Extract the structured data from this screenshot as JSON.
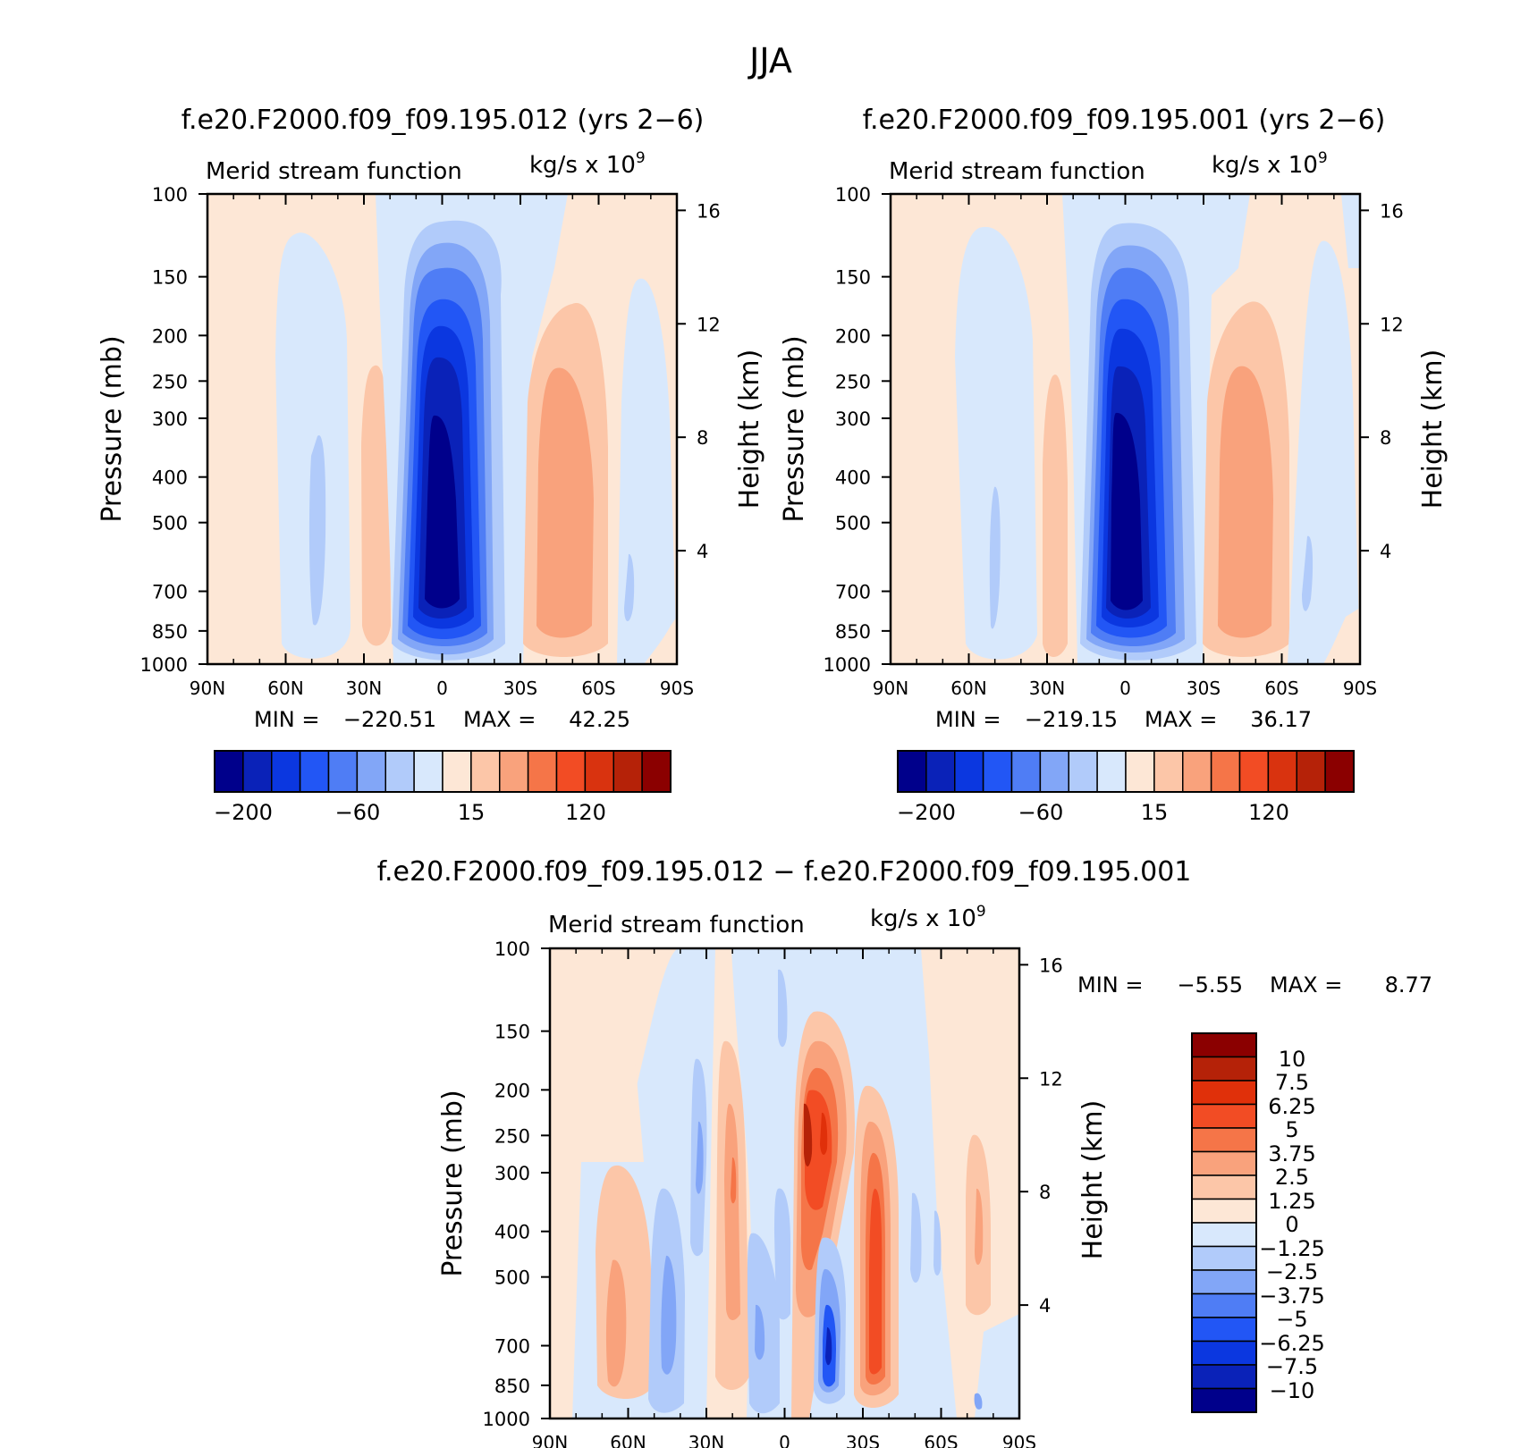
{
  "figure": {
    "title": "JJA",
    "panels": [
      {
        "id": "p1",
        "case_title": "f.e20.F2000.f09_f09.195.012 (yrs 2−6)",
        "left_title": "Merid stream function",
        "units_main": "kg/s x 10",
        "units_exp": "9",
        "ylabel": "Pressure (mb)",
        "y2label": "Height (km)",
        "xticks": [
          "90N",
          "60N",
          "30N",
          "0",
          "30S",
          "60S",
          "90S"
        ],
        "yticks": [
          "100",
          "150",
          "200",
          "250",
          "300",
          "400",
          "500",
          "700",
          "850",
          "1000"
        ],
        "y2ticks": [
          "16",
          "12",
          "8",
          "4"
        ],
        "min_label": "MIN =",
        "min_value": "−220.51",
        "max_label": "MAX =",
        "max_value": "42.25",
        "colorbar_labels": [
          "−200",
          "−60",
          "15",
          "120"
        ]
      },
      {
        "id": "p2",
        "case_title": "f.e20.F2000.f09_f09.195.001 (yrs 2−6)",
        "left_title": "Merid stream function",
        "units_main": "kg/s x 10",
        "units_exp": "9",
        "ylabel": "Pressure (mb)",
        "y2label": "Height (km)",
        "xticks": [
          "90N",
          "60N",
          "30N",
          "0",
          "30S",
          "60S",
          "90S"
        ],
        "yticks": [
          "100",
          "150",
          "200",
          "250",
          "300",
          "400",
          "500",
          "700",
          "850",
          "1000"
        ],
        "y2ticks": [
          "16",
          "12",
          "8",
          "4"
        ],
        "min_label": "MIN =",
        "min_value": "−219.15",
        "max_label": "MAX =",
        "max_value": "36.17",
        "colorbar_labels": [
          "−200",
          "−60",
          "15",
          "120"
        ]
      },
      {
        "id": "p3",
        "case_title": "f.e20.F2000.f09_f09.195.012 − f.e20.F2000.f09_f09.195.001",
        "left_title": "Merid stream function",
        "units_main": "kg/s x 10",
        "units_exp": "9",
        "ylabel": "Pressure (mb)",
        "y2label": "Height (km)",
        "xticks": [
          "90N",
          "60N",
          "30N",
          "0",
          "30S",
          "60S",
          "90S"
        ],
        "yticks": [
          "100",
          "150",
          "200",
          "250",
          "300",
          "400",
          "500",
          "700",
          "850",
          "1000"
        ],
        "y2ticks": [
          "16",
          "12",
          "8",
          "4"
        ],
        "min_label": "MIN =",
        "min_value": "−5.55",
        "max_label": "MAX =",
        "max_value": "8.77",
        "colorbar_labels": [
          "10",
          "7.5",
          "6.25",
          "5",
          "3.75",
          "2.5",
          "1.25",
          "0",
          "−1.25",
          "−2.5",
          "−3.75",
          "−5",
          "−6.25",
          "−7.5",
          "−10"
        ]
      }
    ]
  },
  "colors": {
    "palette_blue_to_red": [
      "#00008b",
      "#0a22b8",
      "#0b37e0",
      "#2256f5",
      "#4f7df5",
      "#82a6f7",
      "#b1cbfa",
      "#d8e8fc",
      "#fde7d6",
      "#fcc6a8",
      "#f9a27c",
      "#f57548",
      "#f24c24",
      "#d9330f",
      "#b52208",
      "#8b0000"
    ],
    "palette_diff_top_to_bottom": [
      "#8b0000",
      "#b52208",
      "#e0300a",
      "#f24c24",
      "#f57548",
      "#f9a27c",
      "#fcc6a8",
      "#fde7d6",
      "#d8e8fc",
      "#b1cbfa",
      "#82a6f7",
      "#4f7df5",
      "#2256f5",
      "#0b37e0",
      "#0a22b8",
      "#00008b"
    ]
  },
  "chart_data": [
    {
      "type": "heatmap",
      "title": "f.e20.F2000.f09_f09.195.012 (yrs 2−6)",
      "variable": "Merid stream function",
      "units": "kg/s x 10^9",
      "x_axis": {
        "label": "",
        "ticks": [
          "90N",
          "60N",
          "30N",
          "0",
          "30S",
          "60S",
          "90S"
        ],
        "range_deg": [
          90,
          -90
        ]
      },
      "y_axis": {
        "label": "Pressure (mb)",
        "scale": "log",
        "range": [
          1000,
          100
        ]
      },
      "y2_axis": {
        "label": "Height (km)",
        "ticks": [
          4,
          8,
          12,
          16
        ]
      },
      "min": -220.51,
      "max": 42.25,
      "levels": [
        -200,
        -180,
        -160,
        -140,
        -120,
        -100,
        -60,
        -20,
        0,
        15,
        30,
        60,
        90,
        120,
        150,
        180
      ],
      "colorbar_labels": [
        "-200",
        "-60",
        "15",
        "120"
      ],
      "features": [
        {
          "center_lat": 0,
          "center_p": 550,
          "sign": "negative",
          "peak": -220.51
        },
        {
          "center_lat": -40,
          "center_p": 500,
          "sign": "positive",
          "peak": 42.25
        },
        {
          "center_lat": 27,
          "center_p": 500,
          "sign": "positive"
        },
        {
          "center_lat": 45,
          "center_p": 450,
          "sign": "negative"
        }
      ]
    },
    {
      "type": "heatmap",
      "title": "f.e20.F2000.f09_f09.195.001 (yrs 2−6)",
      "variable": "Merid stream function",
      "units": "kg/s x 10^9",
      "x_axis": {
        "label": "",
        "ticks": [
          "90N",
          "60N",
          "30N",
          "0",
          "30S",
          "60S",
          "90S"
        ],
        "range_deg": [
          90,
          -90
        ]
      },
      "y_axis": {
        "label": "Pressure (mb)",
        "scale": "log",
        "range": [
          1000,
          100
        ]
      },
      "y2_axis": {
        "label": "Height (km)",
        "ticks": [
          4,
          8,
          12,
          16
        ]
      },
      "min": -219.15,
      "max": 36.17,
      "levels": [
        -200,
        -180,
        -160,
        -140,
        -120,
        -100,
        -60,
        -20,
        0,
        15,
        30,
        60,
        90,
        120,
        150,
        180
      ],
      "colorbar_labels": [
        "-200",
        "-60",
        "15",
        "120"
      ],
      "features": [
        {
          "center_lat": 0,
          "center_p": 550,
          "sign": "negative",
          "peak": -219.15
        },
        {
          "center_lat": -40,
          "center_p": 500,
          "sign": "positive",
          "peak": 36.17
        },
        {
          "center_lat": 27,
          "center_p": 500,
          "sign": "positive"
        },
        {
          "center_lat": 50,
          "center_p": 550,
          "sign": "negative"
        }
      ]
    },
    {
      "type": "heatmap",
      "title": "f.e20.F2000.f09_f09.195.012 − f.e20.F2000.f09_f09.195.001",
      "variable": "Merid stream function",
      "units": "kg/s x 10^9",
      "x_axis": {
        "label": "",
        "ticks": [
          "90N",
          "60N",
          "30N",
          "0",
          "30S",
          "60S",
          "90S"
        ],
        "range_deg": [
          90,
          -90
        ]
      },
      "y_axis": {
        "label": "Pressure (mb)",
        "scale": "log",
        "range": [
          1000,
          100
        ]
      },
      "y2_axis": {
        "label": "Height (km)",
        "ticks": [
          4,
          8,
          12,
          16
        ]
      },
      "min": -5.55,
      "max": 8.77,
      "levels": [
        -10,
        -7.5,
        -6.25,
        -5,
        -3.75,
        -2.5,
        -1.25,
        0,
        1.25,
        2.5,
        3.75,
        5,
        6.25,
        7.5,
        10
      ],
      "colorbar_labels": [
        "10",
        "7.5",
        "6.25",
        "5",
        "3.75",
        "2.5",
        "1.25",
        "0",
        "-1.25",
        "-2.5",
        "-3.75",
        "-5",
        "-6.25",
        "-7.5",
        "-10"
      ],
      "features": [
        {
          "center_lat": -8,
          "center_p": 280,
          "sign": "positive",
          "peak": 8.77
        },
        {
          "center_lat": -38,
          "center_p": 600,
          "sign": "positive"
        },
        {
          "center_lat": -22,
          "center_p": 780,
          "sign": "negative",
          "peak": -5.55
        },
        {
          "center_lat": 63,
          "center_p": 650,
          "sign": "positive"
        },
        {
          "center_lat": 43,
          "center_p": 650,
          "sign": "negative"
        },
        {
          "center_lat": 22,
          "center_p": 450,
          "sign": "positive"
        },
        {
          "center_lat": -72,
          "center_p": 550,
          "sign": "positive"
        }
      ]
    }
  ]
}
